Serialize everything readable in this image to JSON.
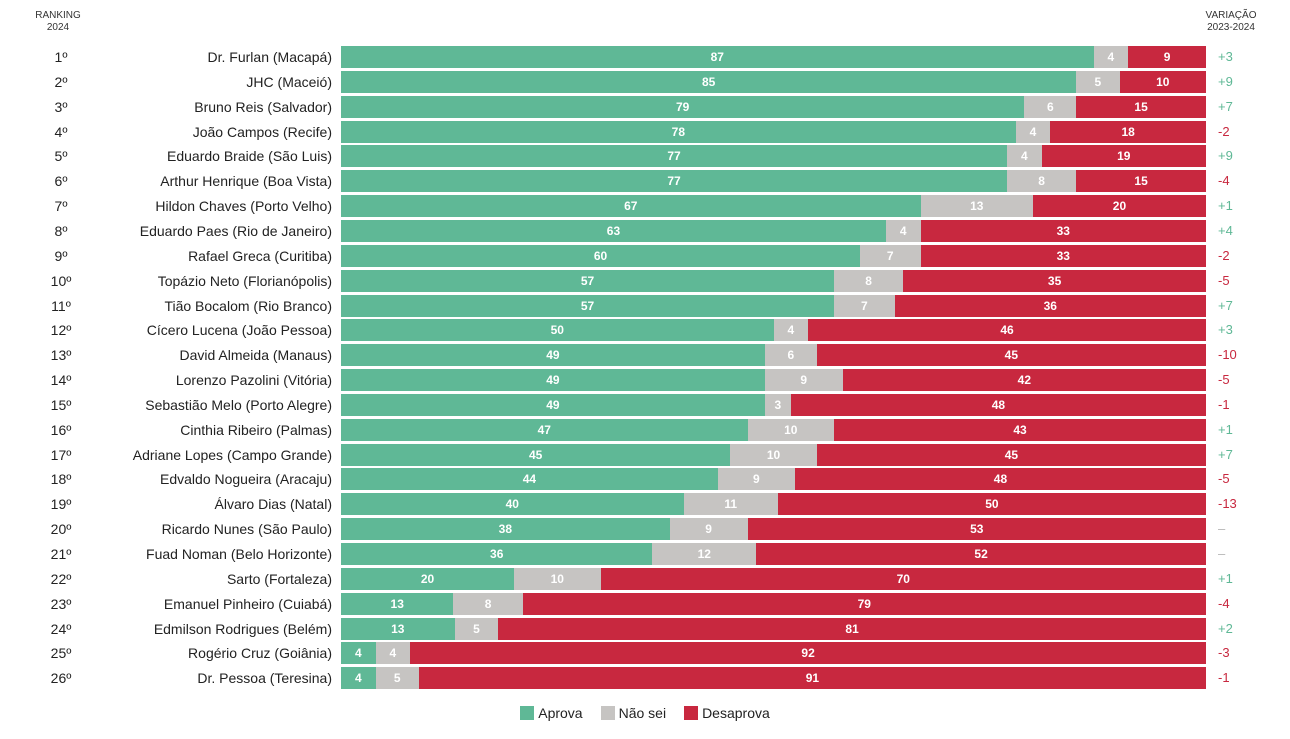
{
  "header": {
    "left_line1": "RANKING",
    "left_line2": "2024",
    "right_line1": "VARIAÇÃO",
    "right_line2": "2023-2024"
  },
  "legend": {
    "approve": "Aprova",
    "unsure": "Não sei",
    "disapprove": "Desaprova"
  },
  "colors": {
    "approve": "#5fb896",
    "unsure": "#c6c4c2",
    "disapprove": "#c8283f",
    "positive_variation": "#5fb896",
    "negative_variation": "#c8283f",
    "neutral_variation": "#b5b5b5"
  },
  "chart_data": {
    "type": "bar",
    "orientation": "horizontal",
    "stacked": true,
    "xlim": [
      0,
      100
    ],
    "grid": false,
    "legend_position": "bottom",
    "series_names": [
      "Aprova",
      "Não sei",
      "Desaprova"
    ],
    "rows": [
      {
        "rank": "1º",
        "name": "Dr. Furlan (Macapá)",
        "approve": 87,
        "unsure": 4,
        "disapprove": 9,
        "variation": "+3"
      },
      {
        "rank": "2º",
        "name": "JHC (Maceió)",
        "approve": 85,
        "unsure": 5,
        "disapprove": 10,
        "variation": "+9"
      },
      {
        "rank": "3º",
        "name": "Bruno Reis (Salvador)",
        "approve": 79,
        "unsure": 6,
        "disapprove": 15,
        "variation": "+7"
      },
      {
        "rank": "4º",
        "name": "João Campos (Recife)",
        "approve": 78,
        "unsure": 4,
        "disapprove": 18,
        "variation": "-2"
      },
      {
        "rank": "5º",
        "name": "Eduardo Braide (São Luis)",
        "approve": 77,
        "unsure": 4,
        "disapprove": 19,
        "variation": "+9"
      },
      {
        "rank": "6º",
        "name": "Arthur Henrique (Boa Vista)",
        "approve": 77,
        "unsure": 8,
        "disapprove": 15,
        "variation": "-4"
      },
      {
        "rank": "7º",
        "name": "Hildon Chaves (Porto Velho)",
        "approve": 67,
        "unsure": 13,
        "disapprove": 20,
        "variation": "+1"
      },
      {
        "rank": "8º",
        "name": "Eduardo Paes (Rio de Janeiro)",
        "approve": 63,
        "unsure": 4,
        "disapprove": 33,
        "variation": "+4"
      },
      {
        "rank": "9º",
        "name": "Rafael Greca (Curitiba)",
        "approve": 60,
        "unsure": 7,
        "disapprove": 33,
        "variation": "-2"
      },
      {
        "rank": "10º",
        "name": "Topázio Neto (Florianópolis)",
        "approve": 57,
        "unsure": 8,
        "disapprove": 35,
        "variation": "-5"
      },
      {
        "rank": "11º",
        "name": "Tião Bocalom (Rio Branco)",
        "approve": 57,
        "unsure": 7,
        "disapprove": 36,
        "variation": "+7"
      },
      {
        "rank": "12º",
        "name": "Cícero Lucena (João Pessoa)",
        "approve": 50,
        "unsure": 4,
        "disapprove": 46,
        "variation": "+3"
      },
      {
        "rank": "13º",
        "name": "David Almeida (Manaus)",
        "approve": 49,
        "unsure": 6,
        "disapprove": 45,
        "variation": "-10"
      },
      {
        "rank": "14º",
        "name": "Lorenzo Pazolini (Vitória)",
        "approve": 49,
        "unsure": 9,
        "disapprove": 42,
        "variation": "-5"
      },
      {
        "rank": "15º",
        "name": "Sebastião Melo (Porto Alegre)",
        "approve": 49,
        "unsure": 3,
        "disapprove": 48,
        "variation": "-1"
      },
      {
        "rank": "16º",
        "name": "Cinthia Ribeiro (Palmas)",
        "approve": 47,
        "unsure": 10,
        "disapprove": 43,
        "variation": "+1"
      },
      {
        "rank": "17º",
        "name": "Adriane Lopes (Campo Grande)",
        "approve": 45,
        "unsure": 10,
        "disapprove": 45,
        "variation": "+7"
      },
      {
        "rank": "18º",
        "name": "Edvaldo Nogueira (Aracaju)",
        "approve": 44,
        "unsure": 9,
        "disapprove": 48,
        "variation": "-5"
      },
      {
        "rank": "19º",
        "name": "Álvaro Dias (Natal)",
        "approve": 40,
        "unsure": 11,
        "disapprove": 50,
        "variation": "-13"
      },
      {
        "rank": "20º",
        "name": "Ricardo Nunes (São Paulo)",
        "approve": 38,
        "unsure": 9,
        "disapprove": 53,
        "variation": "–"
      },
      {
        "rank": "21º",
        "name": "Fuad Noman (Belo Horizonte)",
        "approve": 36,
        "unsure": 12,
        "disapprove": 52,
        "variation": "–"
      },
      {
        "rank": "22º",
        "name": "Sarto (Fortaleza)",
        "approve": 20,
        "unsure": 10,
        "disapprove": 70,
        "variation": "+1"
      },
      {
        "rank": "23º",
        "name": "Emanuel Pinheiro (Cuiabá)",
        "approve": 13,
        "unsure": 8,
        "disapprove": 79,
        "variation": "-4"
      },
      {
        "rank": "24º",
        "name": "Edmilson Rodrigues (Belém)",
        "approve": 13,
        "unsure": 5,
        "disapprove": 81,
        "variation": "+2"
      },
      {
        "rank": "25º",
        "name": "Rogério Cruz (Goiânia)",
        "approve": 4,
        "unsure": 4,
        "disapprove": 92,
        "variation": "-3"
      },
      {
        "rank": "26º",
        "name": "Dr. Pessoa (Teresina)",
        "approve": 4,
        "unsure": 5,
        "disapprove": 91,
        "variation": "-1"
      }
    ]
  }
}
